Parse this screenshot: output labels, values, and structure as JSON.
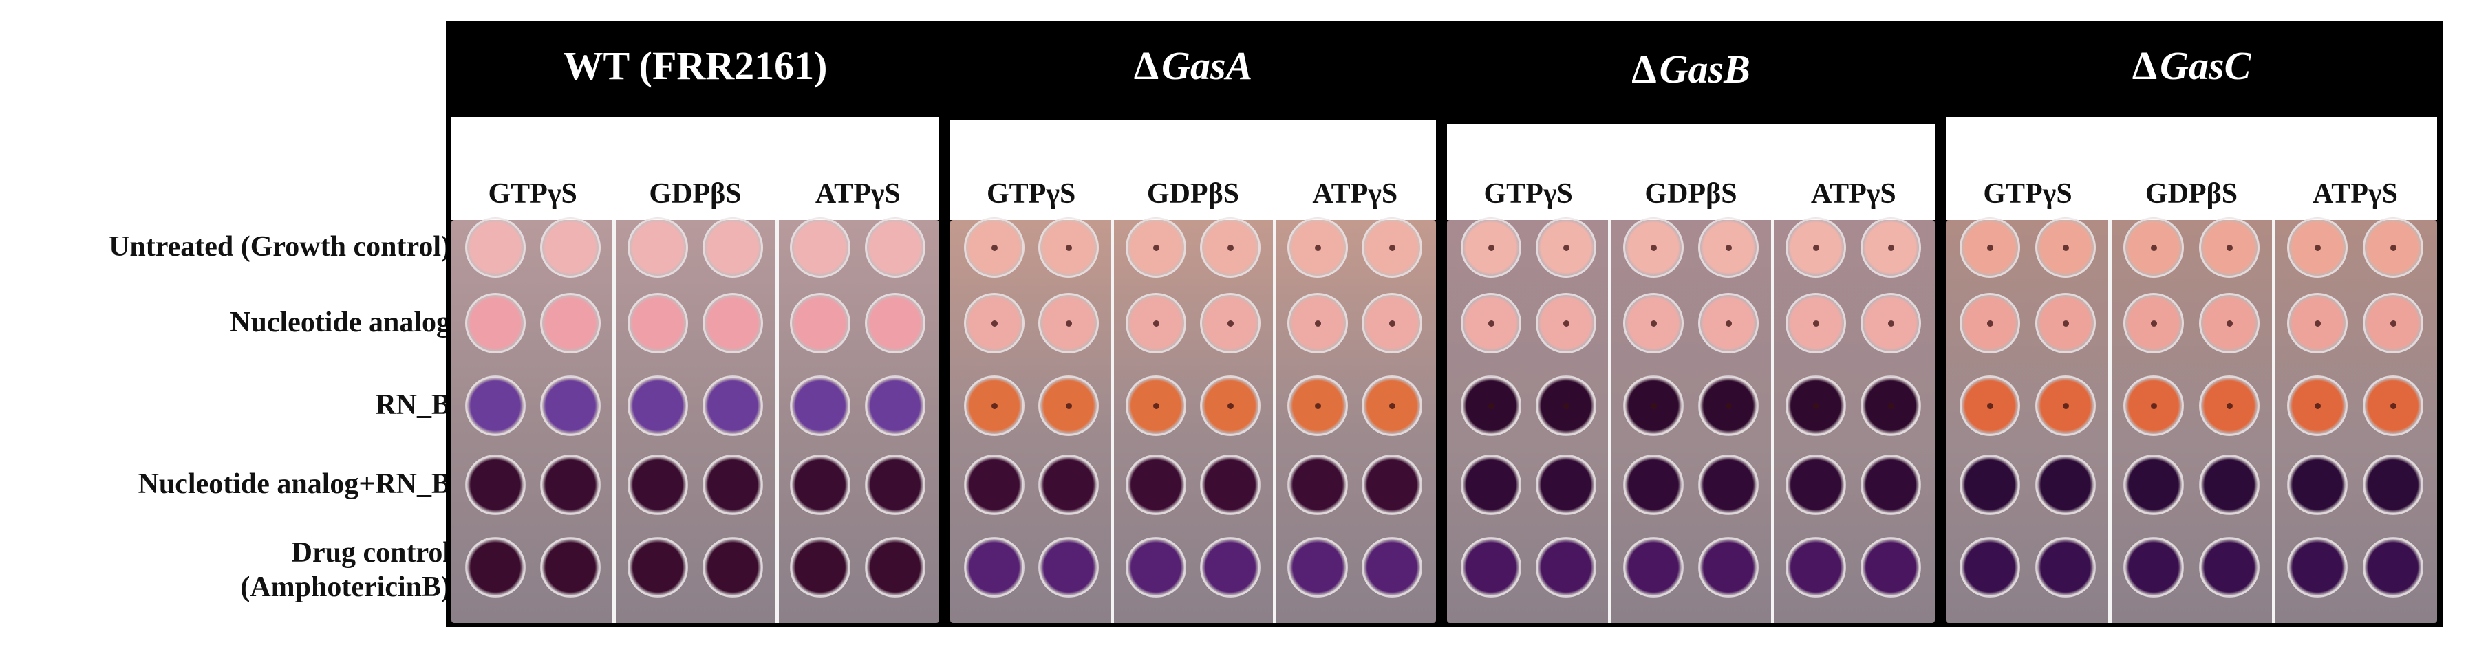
{
  "row_labels": [
    "Untreated (Growth control)",
    "Nucleotide analog",
    "RN_B",
    "Nucleotide analog+RN_B",
    "Drug control",
    "(AmphotericinB)"
  ],
  "panels": [
    {
      "title": "WT (FRR2161)",
      "delta": "",
      "gene": "",
      "columns": [
        "GTPγS",
        "GDPβS",
        "ATPγS"
      ],
      "plate_tone": "#b79a9c",
      "row_colors": [
        "#f0b3b3",
        "#ef9fa8",
        "#6a3d9a",
        "#3a0d30",
        "#3b0c2d"
      ]
    },
    {
      "title": "",
      "delta": "Δ",
      "gene": "GasA",
      "columns": [
        "GTPγS",
        "GDPβS",
        "ATPγS"
      ],
      "plate_tone": "#c39a8e",
      "row_colors": [
        "#efb0a6",
        "#eeaaa4",
        "#e0703e",
        "#3d0c33",
        "#562073"
      ]
    },
    {
      "title": "",
      "delta": "Δ",
      "gene": "GasB",
      "columns": [
        "GTPγS",
        "GDPβS",
        "ATPγS"
      ],
      "plate_tone": "#a88b90",
      "row_colors": [
        "#f1b4ab",
        "#efaca7",
        "#2f0a2e",
        "#310a35",
        "#4a1660"
      ]
    },
    {
      "title": "",
      "delta": "Δ",
      "gene": "GasC",
      "columns": [
        "GTPγS",
        "GDPβS",
        "ATPγS"
      ],
      "plate_tone": "#b08c84",
      "row_colors": [
        "#eea796",
        "#eda39a",
        "#e0683c",
        "#2c0b38",
        "#3a0f4d"
      ]
    }
  ]
}
